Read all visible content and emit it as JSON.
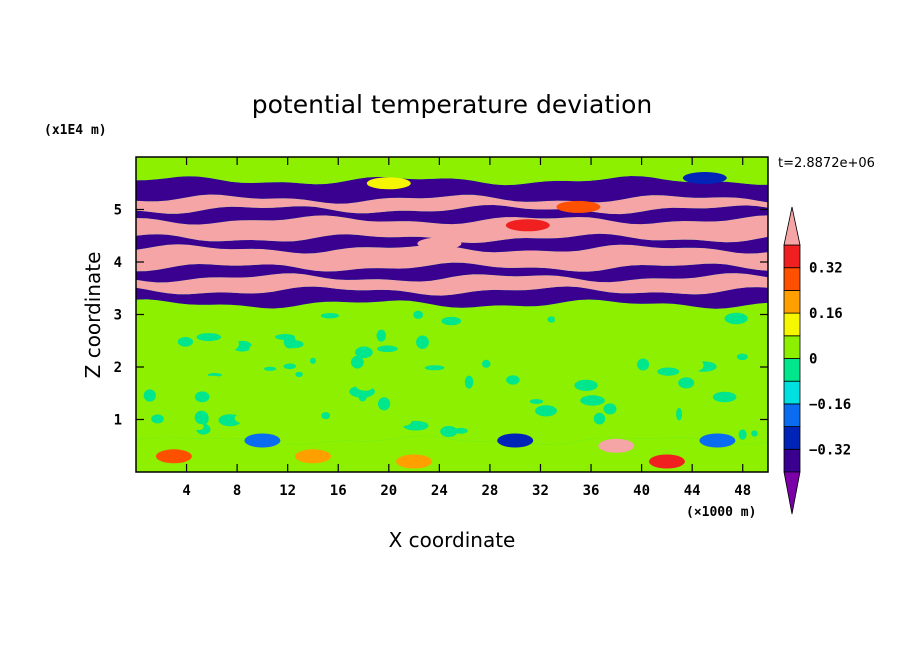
{
  "chart_data": {
    "type": "heatmap",
    "title": "potential temperature deviation",
    "xlabel": "X coordinate",
    "ylabel": "Z coordinate",
    "x_unit": "(×1000 m)",
    "y_unit": "(x1E4 m)",
    "time_label": "t=2.8872e+06",
    "xlim": [
      0,
      50
    ],
    "ylim": [
      0,
      6
    ],
    "x_ticks": [
      4,
      8,
      12,
      16,
      20,
      24,
      28,
      32,
      36,
      40,
      44,
      48
    ],
    "y_ticks": [
      1,
      2,
      3,
      4,
      5
    ],
    "colorbar": {
      "levels": [
        -0.4,
        -0.32,
        -0.24,
        -0.16,
        -0.08,
        0,
        0.08,
        0.16,
        0.24,
        0.32,
        0.4
      ],
      "labels": [
        "0.32",
        "0.16",
        "0",
        "−0.16",
        "−0.32"
      ],
      "label_values": [
        0.32,
        0.16,
        0,
        -0.16,
        -0.32
      ],
      "colors": [
        "#7b00a8",
        "#3a0090",
        "#0024b8",
        "#0a6cf0",
        "#00e0e0",
        "#00e68c",
        "#8cf000",
        "#f6f600",
        "#ffa000",
        "#ff5000",
        "#f02020",
        "#f5a5a5"
      ],
      "extend": "both"
    },
    "bands": [
      {
        "z": [
          0.0,
          0.6
        ],
        "value": 0.0
      },
      {
        "z": [
          0.6,
          3.2
        ],
        "value": 0.04
      },
      {
        "z": [
          3.2,
          3.45
        ],
        "value": -0.4
      },
      {
        "z": [
          3.45,
          3.7
        ],
        "value": 0.4
      },
      {
        "z": [
          3.7,
          3.9
        ],
        "value": -0.4
      },
      {
        "z": [
          3.9,
          4.25
        ],
        "value": 0.4
      },
      {
        "z": [
          4.25,
          4.45
        ],
        "value": -0.4
      },
      {
        "z": [
          4.45,
          4.8
        ],
        "value": 0.4
      },
      {
        "z": [
          4.8,
          5.0
        ],
        "value": -0.4
      },
      {
        "z": [
          5.0,
          5.2
        ],
        "value": 0.4
      },
      {
        "z": [
          5.2,
          5.55
        ],
        "value": -0.4
      },
      {
        "z": [
          5.55,
          6.0
        ],
        "value": 0.05
      }
    ]
  }
}
